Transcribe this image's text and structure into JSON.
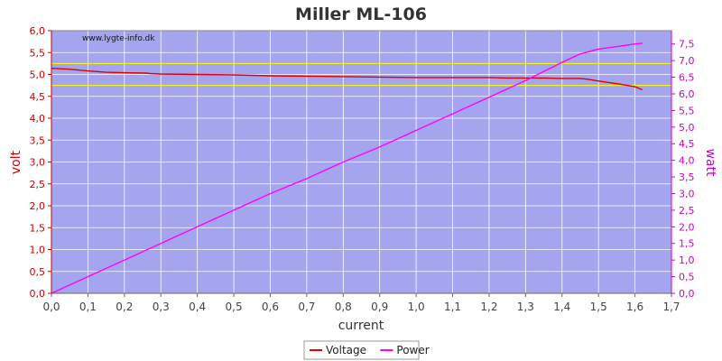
{
  "chart_data": {
    "type": "line",
    "title": "Miller ML-106",
    "watermark": "www.lygte-info.dk",
    "xlabel": "current",
    "ylabel_left": "volt",
    "ylabel_right": "watt",
    "xlim": [
      0.0,
      1.7
    ],
    "ylim_left": [
      0.0,
      6.0
    ],
    "ylim_right": [
      0.0,
      7.9
    ],
    "x_ticks": [
      "0,0",
      "0,1",
      "0,2",
      "0,3",
      "0,4",
      "0,5",
      "0,6",
      "0,7",
      "0,8",
      "0,9",
      "1,0",
      "1,1",
      "1,2",
      "1,3",
      "1,4",
      "1,5",
      "1,6",
      "1,7"
    ],
    "y_left_ticks": [
      "0,0",
      "0,5",
      "1,0",
      "1,5",
      "2,0",
      "2,5",
      "3,0",
      "3,5",
      "4,0",
      "4,5",
      "5,0",
      "5,5",
      "6,0"
    ],
    "y_right_ticks": [
      "0,0",
      "0,5",
      "1,0",
      "1,5",
      "2,0",
      "2,5",
      "3,0",
      "3,5",
      "4,0",
      "4,5",
      "5,0",
      "5,5",
      "6,0",
      "6,5",
      "7,0",
      "7,5"
    ],
    "reference_lines_volt": [
      5.25,
      4.75
    ],
    "grid": true,
    "legend_position": "bottom-center",
    "colors": {
      "plot_bg": "#a5a5ef",
      "grid": "#ffffff",
      "voltage": "#dd0000",
      "power": "#ff00ff",
      "reference": "#ffff00",
      "left_axis": "#cc0000",
      "right_axis": "#cc00cc"
    },
    "series": [
      {
        "name": "Voltage",
        "axis": "left",
        "x": [
          0.0,
          0.05,
          0.1,
          0.15,
          0.2,
          0.26,
          0.27,
          0.3,
          0.4,
          0.5,
          0.55,
          0.6,
          0.7,
          0.8,
          0.9,
          1.0,
          1.1,
          1.2,
          1.25,
          1.3,
          1.35,
          1.4,
          1.45,
          1.47,
          1.5,
          1.55,
          1.6,
          1.62
        ],
        "values": [
          5.14,
          5.12,
          5.08,
          5.05,
          5.04,
          5.03,
          5.02,
          5.01,
          5.0,
          4.99,
          4.98,
          4.97,
          4.96,
          4.95,
          4.94,
          4.93,
          4.93,
          4.93,
          4.92,
          4.92,
          4.92,
          4.91,
          4.91,
          4.89,
          4.85,
          4.79,
          4.72,
          4.65
        ]
      },
      {
        "name": "Power",
        "axis": "right",
        "x": [
          0.0,
          0.1,
          0.2,
          0.3,
          0.4,
          0.5,
          0.6,
          0.7,
          0.8,
          0.9,
          1.0,
          1.1,
          1.2,
          1.3,
          1.4,
          1.45,
          1.5,
          1.55,
          1.6,
          1.62
        ],
        "values": [
          0.0,
          0.5,
          1.0,
          1.5,
          2.0,
          2.5,
          3.0,
          3.45,
          3.95,
          4.4,
          4.9,
          5.4,
          5.9,
          6.4,
          6.95,
          7.2,
          7.35,
          7.42,
          7.5,
          7.52
        ]
      }
    ]
  }
}
